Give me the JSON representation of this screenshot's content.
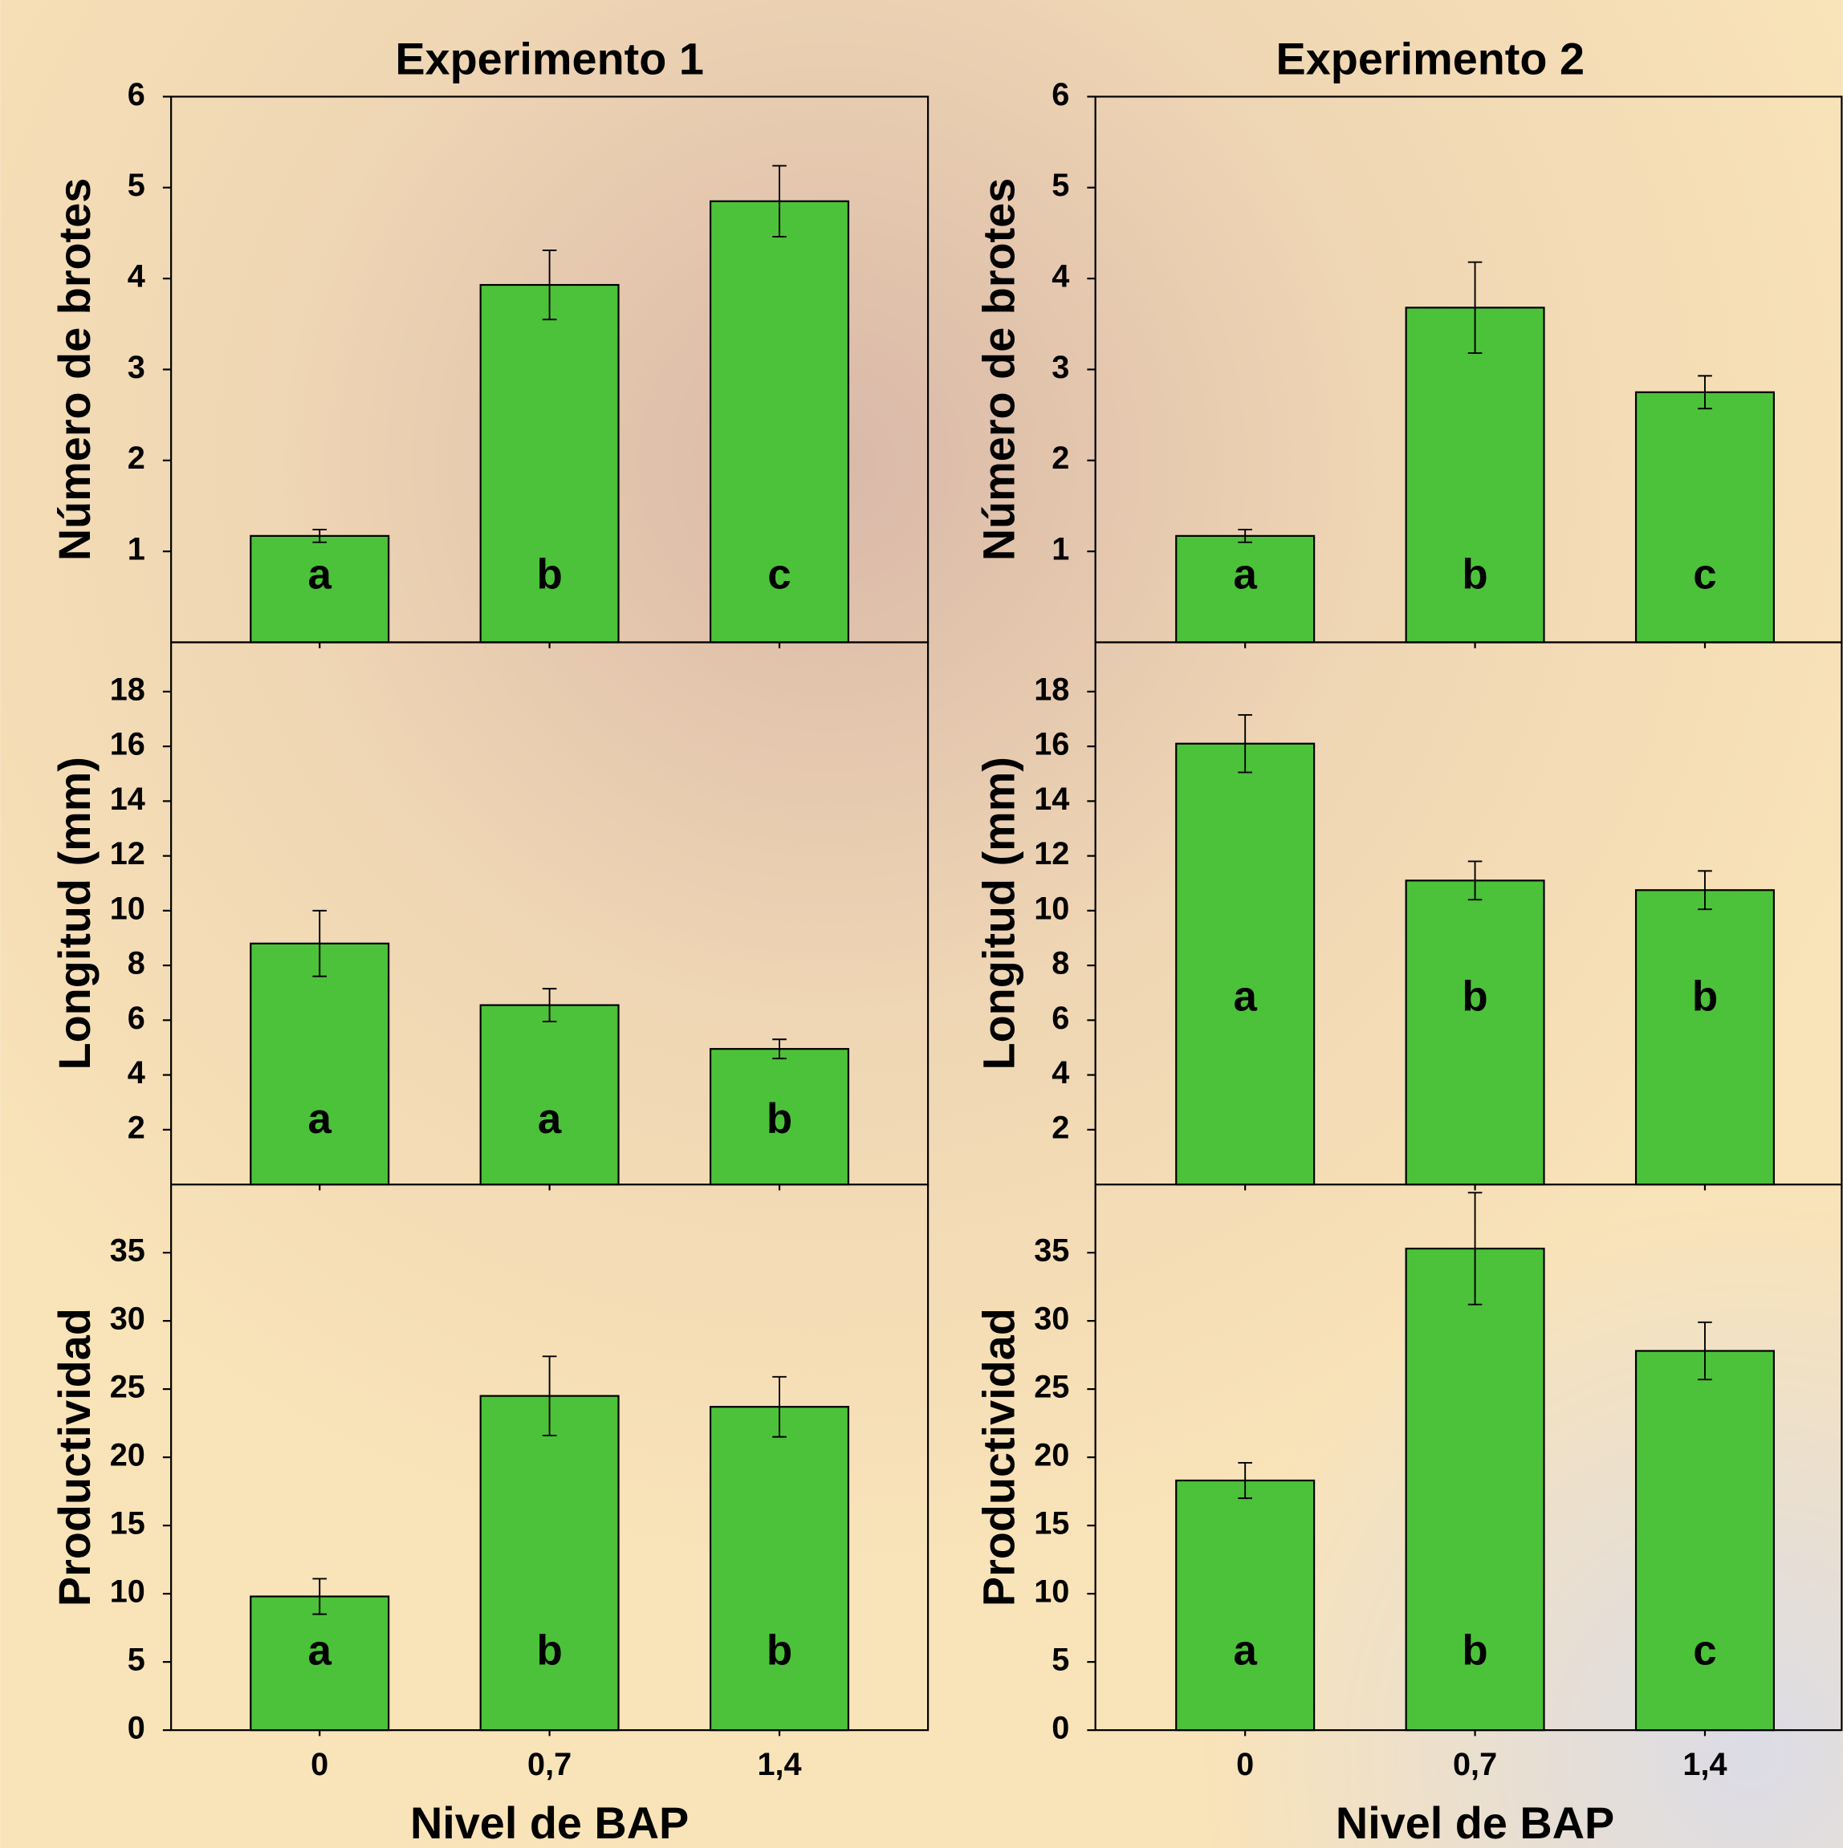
{
  "chart_data": [
    {
      "type": "bar",
      "title": "Experimento 1",
      "ylabel": "Número de brotes",
      "values": [
        1.17,
        3.93,
        4.85
      ],
      "errors": [
        0.07,
        0.38,
        0.39
      ],
      "letters": [
        "a",
        "b",
        "c"
      ],
      "color": "#4cc23a",
      "ylim": [
        0,
        6
      ],
      "yticks": [
        1,
        2,
        3,
        4,
        5,
        6
      ]
    },
    {
      "type": "bar",
      "title": "Experimento 2",
      "ylabel": "Número de brotes",
      "values": [
        1.17,
        3.68,
        2.75
      ],
      "errors": [
        0.07,
        0.5,
        0.18
      ],
      "letters": [
        "a",
        "b",
        "c"
      ],
      "color": "#4cc23a",
      "ylim": [
        0,
        6
      ],
      "yticks": [
        1,
        2,
        3,
        4,
        5,
        6
      ]
    },
    {
      "type": "bar",
      "ylabel": "Longitud (mm)",
      "values": [
        8.8,
        6.55,
        4.95
      ],
      "errors": [
        1.2,
        0.6,
        0.35
      ],
      "letters": [
        "a",
        "a",
        "b"
      ],
      "color": "#4cc23a",
      "ylim": [
        0,
        19.8
      ],
      "yticks": [
        2,
        4,
        6,
        8,
        10,
        12,
        14,
        16,
        18
      ]
    },
    {
      "type": "bar",
      "ylabel": "Longitud (mm)",
      "values": [
        16.1,
        11.1,
        10.75
      ],
      "errors": [
        1.05,
        0.7,
        0.7
      ],
      "letters": [
        "a",
        "b",
        "b"
      ],
      "color": "#4cc23a",
      "ylim": [
        0,
        19.8
      ],
      "yticks": [
        2,
        4,
        6,
        8,
        10,
        12,
        14,
        16,
        18
      ]
    },
    {
      "type": "bar",
      "ylabel": "Productividad",
      "xlabel": "Nivel de BAP",
      "categories": [
        "0",
        "0,7",
        "1,4"
      ],
      "values": [
        9.8,
        24.5,
        23.7
      ],
      "errors": [
        1.3,
        2.9,
        2.2
      ],
      "letters": [
        "a",
        "b",
        "b"
      ],
      "color": "#4cc23a",
      "ylim": [
        0,
        40
      ],
      "yticks": [
        0,
        5,
        10,
        15,
        20,
        25,
        30,
        35
      ]
    },
    {
      "type": "bar",
      "ylabel": "Productividad",
      "xlabel": "Nivel de BAP",
      "categories": [
        "0",
        "0,7",
        "1,4"
      ],
      "values": [
        18.3,
        35.3,
        27.8
      ],
      "errors": [
        1.3,
        4.1,
        2.1
      ],
      "letters": [
        "a",
        "b",
        "c"
      ],
      "color": "#4cc23a",
      "ylim": [
        0,
        40
      ],
      "yticks": [
        0,
        5,
        10,
        15,
        20,
        25,
        30,
        35
      ]
    }
  ]
}
